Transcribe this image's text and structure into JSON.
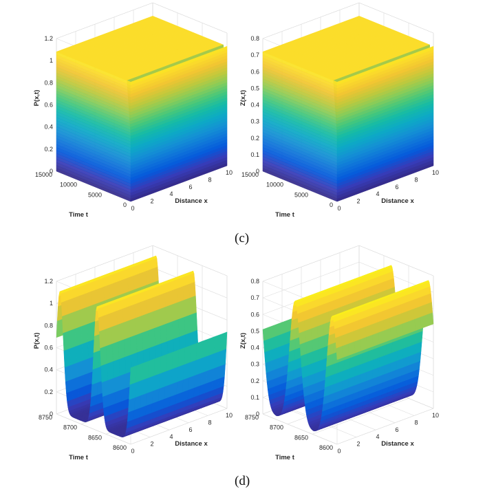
{
  "captions": {
    "c": "(c)",
    "d": "(d)"
  },
  "chart_data": [
    {
      "type": "surface",
      "zlabel": "P(x,t)",
      "xlabel": "Distance x",
      "ylabel": "Time t",
      "x_ticks": [
        "0",
        "2",
        "4",
        "6",
        "8",
        "10"
      ],
      "y_ticks": [
        "0",
        "5000",
        "10000",
        "15000"
      ],
      "z_ticks": [
        "0",
        "0.2",
        "0.4",
        "0.6",
        "0.8",
        "1",
        "1.2"
      ],
      "xlim": [
        0,
        10
      ],
      "ylim": [
        0,
        15000
      ],
      "zlim": [
        0,
        1.2
      ],
      "plateau": 1.08,
      "grid": true,
      "colormap": "parula",
      "shape": "steady"
    },
    {
      "type": "surface",
      "zlabel": "Z(x,t)",
      "xlabel": "Distance x",
      "ylabel": "Time t",
      "x_ticks": [
        "0",
        "2",
        "4",
        "6",
        "8",
        "10"
      ],
      "y_ticks": [
        "0",
        "5000",
        "10000",
        "15000"
      ],
      "z_ticks": [
        "0",
        "0.1",
        "0.2",
        "0.3",
        "0.4",
        "0.5",
        "0.6",
        "0.7",
        "0.8"
      ],
      "xlim": [
        0,
        10
      ],
      "ylim": [
        0,
        15000
      ],
      "zlim": [
        0,
        0.8
      ],
      "plateau": 0.72,
      "grid": true,
      "colormap": "parula",
      "shape": "steady"
    },
    {
      "type": "surface",
      "zlabel": "P(x,t)",
      "xlabel": "Distance x",
      "ylabel": "Time t",
      "x_ticks": [
        "0",
        "2",
        "4",
        "6",
        "8",
        "10"
      ],
      "y_ticks": [
        "8600",
        "8650",
        "8700",
        "8750"
      ],
      "z_ticks": [
        "0",
        "0.2",
        "0.4",
        "0.6",
        "0.8",
        "1",
        "1.2"
      ],
      "xlim": [
        0,
        10
      ],
      "ylim": [
        8600,
        8750
      ],
      "zlim": [
        0,
        1.2
      ],
      "peak": 1.12,
      "base": 0.03,
      "period": 75,
      "phase": 8668,
      "width": 14,
      "grid": true,
      "colormap": "parula",
      "shape": "oscillating"
    },
    {
      "type": "surface",
      "zlabel": "Z(x,t)",
      "xlabel": "Distance x",
      "ylabel": "Time t",
      "x_ticks": [
        "0",
        "2",
        "4",
        "6",
        "8",
        "10"
      ],
      "y_ticks": [
        "8600",
        "8650",
        "8700",
        "8750"
      ],
      "z_ticks": [
        "0",
        "0.1",
        "0.2",
        "0.3",
        "0.4",
        "0.5",
        "0.6",
        "0.7",
        "0.8"
      ],
      "xlim": [
        0,
        10
      ],
      "ylim": [
        8600,
        8750
      ],
      "zlim": [
        0,
        0.8
      ],
      "peak": 0.76,
      "base": 0.02,
      "period": 75,
      "phase": 8685,
      "width": 22,
      "grid": true,
      "colormap": "parula",
      "shape": "oscillating"
    }
  ]
}
